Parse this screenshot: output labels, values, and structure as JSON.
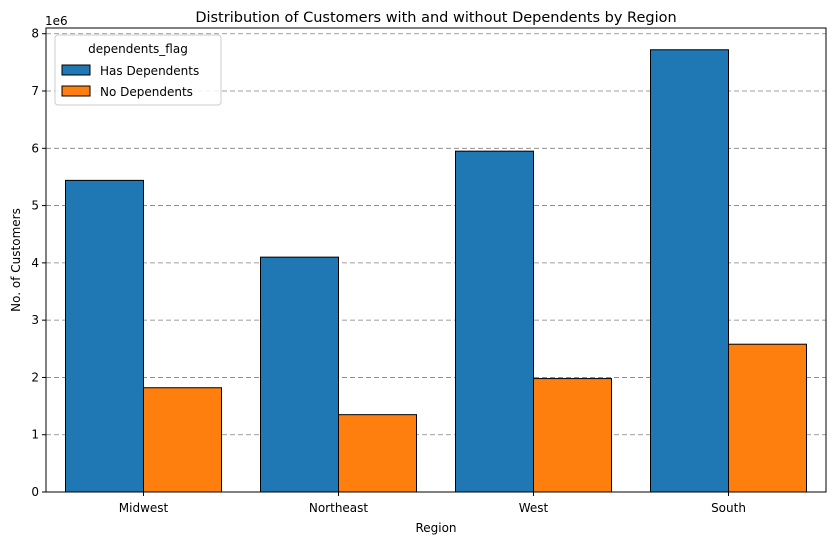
{
  "chart_data": {
    "type": "bar",
    "title": "Distribution of Customers with and without Dependents by Region",
    "xlabel": "Region",
    "ylabel": "No. of Customers",
    "y_offset_label": "1e6",
    "y_scale_factor": 1000000,
    "categories": [
      "Midwest",
      "Northeast",
      "West",
      "South"
    ],
    "series": [
      {
        "name": "Has Dependents",
        "color": "#1f77b4",
        "values": [
          5440000,
          4100000,
          5950000,
          7720000
        ]
      },
      {
        "name": "No Dependents",
        "color": "#ff7f0e",
        "values": [
          1820000,
          1350000,
          1980000,
          2580000
        ]
      }
    ],
    "ylim": [
      0,
      8100000
    ],
    "yticks": [
      0,
      1,
      2,
      3,
      4,
      5,
      6,
      7,
      8
    ],
    "grid": {
      "axis": "y",
      "style": "dashed",
      "color": "#808080"
    },
    "legend": {
      "title": "dependents_flag",
      "placement": "top-left"
    }
  }
}
